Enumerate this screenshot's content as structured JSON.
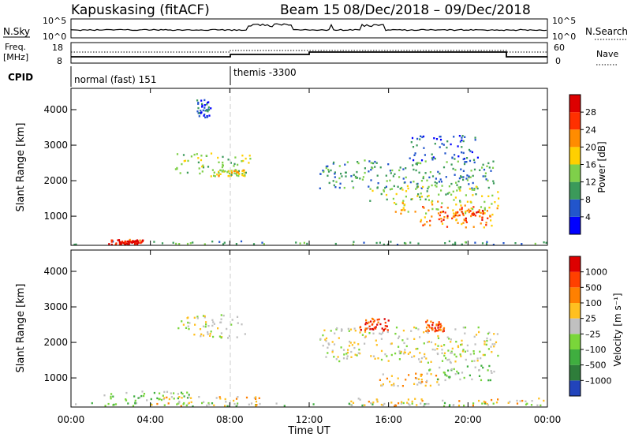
{
  "header": {
    "station": "Kapuskasing (fitACF)",
    "beam": "Beam 15",
    "date_range": "08/Dec/2018 – 09/Dec/2018"
  },
  "top_panels": {
    "nsky_label": "N.Sky",
    "nsearch_label": "N.Search",
    "nsky_ticks": [
      "10^5",
      "10^0"
    ],
    "nsearch_ticks": [
      "10^5",
      "10^0"
    ],
    "freq_label_1": "Freq.",
    "freq_label_2": "[MHz]",
    "freq_ticks": [
      "18",
      "8"
    ],
    "nave_label": "Nave",
    "nave_ticks": [
      "60",
      "0"
    ],
    "cpid_label": "CPID",
    "cpid_modes": [
      {
        "label": "normal (fast) 151",
        "start_h": 0
      },
      {
        "label": "themis -3300",
        "start_h": 8
      }
    ]
  },
  "chart_data": [
    {
      "type": "heatmap",
      "title": "Power",
      "xlabel": "",
      "ylabel": "Slant Range [km]",
      "xlim": [
        0,
        24
      ],
      "ylim": [
        180,
        4600
      ],
      "yticks": [
        1000,
        2000,
        3000,
        4000
      ],
      "colorbar": {
        "label": "Power [dB]",
        "ticks": [
          "4",
          "8",
          "12",
          "16",
          "20",
          "24",
          "28"
        ],
        "colors": [
          "#0000ff",
          "#2255cc",
          "#3b9a5a",
          "#7fd04a",
          "#ffd000",
          "#ff8c00",
          "#ff3000",
          "#dd0000"
        ]
      },
      "regions": [
        {
          "t0": 0.0,
          "t1": 24.0,
          "r0": 190,
          "r1": 320,
          "level": 2
        },
        {
          "t0": 1.8,
          "t1": 3.6,
          "r0": 200,
          "r1": 380,
          "level": 6
        },
        {
          "t0": 2.4,
          "t1": 3.4,
          "r0": 230,
          "r1": 330,
          "level": 7
        },
        {
          "t0": 5.2,
          "t1": 9.0,
          "r0": 2150,
          "r1": 2800,
          "level": 3
        },
        {
          "t0": 7.0,
          "t1": 8.8,
          "r0": 2150,
          "r1": 2350,
          "level": 4
        },
        {
          "t0": 12.5,
          "t1": 21.5,
          "r0": 1800,
          "r1": 2600,
          "level": 2
        },
        {
          "t0": 15.0,
          "t1": 21.5,
          "r0": 1450,
          "r1": 1900,
          "level": 3
        },
        {
          "t0": 16.0,
          "t1": 21.5,
          "r0": 1100,
          "r1": 1450,
          "level": 4
        },
        {
          "t0": 17.5,
          "t1": 21.3,
          "r0": 700,
          "r1": 1300,
          "level": 5
        },
        {
          "t0": 18.5,
          "t1": 21.0,
          "r0": 900,
          "r1": 1200,
          "level": 6
        },
        {
          "t0": 6.3,
          "t1": 7.0,
          "r0": 3800,
          "r1": 4300,
          "level": 1
        },
        {
          "t0": 17.0,
          "t1": 20.5,
          "r0": 2600,
          "r1": 3300,
          "level": 1
        }
      ]
    },
    {
      "type": "heatmap",
      "title": "Velocity",
      "xlabel": "Time UT",
      "ylabel": "Slant Range [km]",
      "xlim": [
        0,
        24
      ],
      "ylim": [
        180,
        4600
      ],
      "yticks": [
        1000,
        2000,
        3000,
        4000
      ],
      "xticks": [
        "00:00",
        "04:00",
        "08:00",
        "12:00",
        "16:00",
        "20:00",
        "00:00"
      ],
      "colorbar": {
        "label": "Velocity [m s⁻¹]",
        "ticks": [
          "1000",
          "500",
          "100",
          "25",
          "–25",
          "–100",
          "–500",
          "–1000"
        ],
        "colors": [
          "#2244bb",
          "#2e7d3a",
          "#3fae3f",
          "#7ad63a",
          "#c0c0c0",
          "#ffc020",
          "#ff8000",
          "#ff4000",
          "#dd0000"
        ]
      },
      "regions": [
        {
          "t0": 0.0,
          "t1": 24.0,
          "r0": 190,
          "r1": 320,
          "level": 3
        },
        {
          "t0": 1.5,
          "t1": 6.0,
          "r0": 250,
          "r1": 650,
          "level": 3
        },
        {
          "t0": 4.0,
          "t1": 9.5,
          "r0": 200,
          "r1": 500,
          "level": 5
        },
        {
          "t0": 5.3,
          "t1": 8.8,
          "r0": 2150,
          "r1": 2800,
          "level": 4
        },
        {
          "t0": 12.5,
          "t1": 21.5,
          "r0": 1450,
          "r1": 2450,
          "level": 4
        },
        {
          "t0": 14.5,
          "t1": 16.0,
          "r0": 2350,
          "r1": 2700,
          "level": 7
        },
        {
          "t0": 17.8,
          "t1": 18.8,
          "r0": 2300,
          "r1": 2650,
          "level": 7
        },
        {
          "t0": 15.5,
          "t1": 18.5,
          "r0": 800,
          "r1": 1150,
          "level": 5
        },
        {
          "t0": 18.0,
          "t1": 21.3,
          "r0": 950,
          "r1": 1400,
          "level": 3
        },
        {
          "t0": 14.0,
          "t1": 24.0,
          "r0": 200,
          "r1": 450,
          "level": 5
        }
      ]
    }
  ],
  "xaxis": {
    "ticks": [
      "00:00",
      "04:00",
      "08:00",
      "12:00",
      "16:00",
      "20:00",
      "00:00"
    ],
    "label": "Time UT"
  }
}
